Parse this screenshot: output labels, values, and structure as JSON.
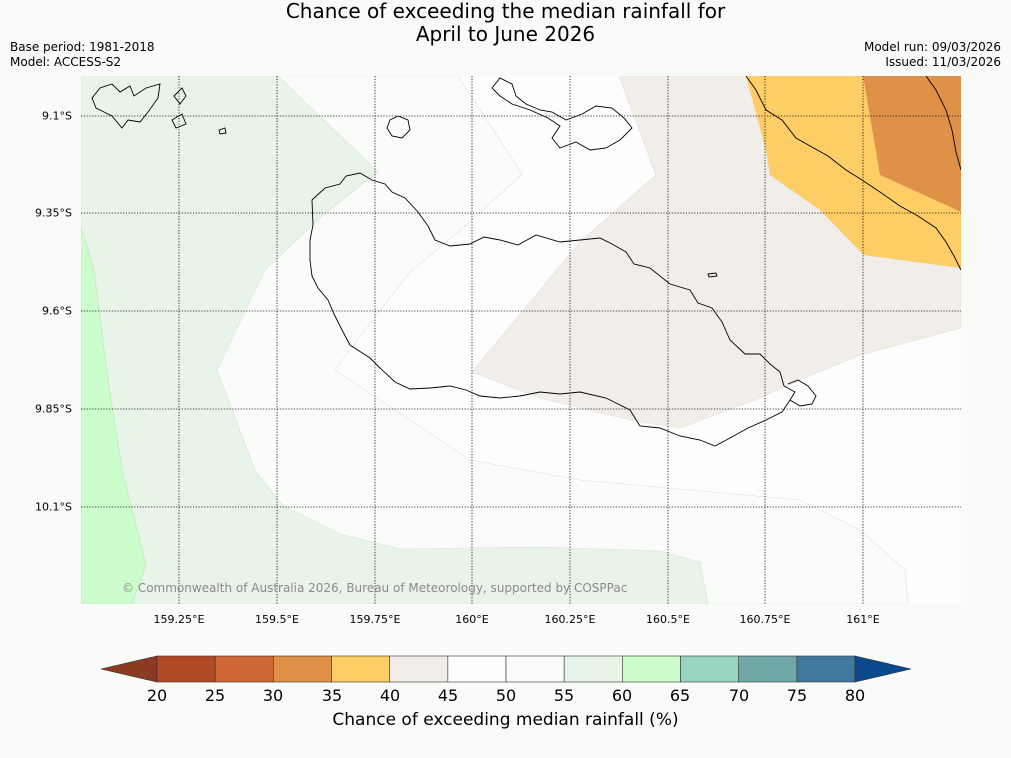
{
  "title": {
    "line1": "Chance of exceeding the median rainfall for",
    "line2": "April to June 2026"
  },
  "meta_left": {
    "base_period": "Base period: 1981-2018",
    "model": "Model: ACCESS-S2"
  },
  "meta_right": {
    "model_run": "Model run: 09/03/2026",
    "issued": "Issued: 11/03/2026"
  },
  "map": {
    "lat_labels": [
      "9.1°S",
      "9.35°S",
      "9.6°S",
      "9.85°S",
      "10.1°S"
    ],
    "lon_labels": [
      "159.25°E",
      "159.5°E",
      "159.75°E",
      "160°E",
      "160.25°E",
      "160.5°E",
      "160.75°E",
      "161°E"
    ],
    "copyright": "© Commonwealth of Australia 2026, Bureau of Meteorology, supported by COSPPac"
  },
  "colorbar": {
    "ticks": [
      "20",
      "25",
      "30",
      "35",
      "40",
      "45",
      "50",
      "55",
      "60",
      "65",
      "70",
      "75",
      "80"
    ],
    "colors": [
      "#8c3a22",
      "#b24a28",
      "#cf6634",
      "#e09148",
      "#ffcd66",
      "#f1ede8",
      "#fcfdfc",
      "#fafcfa",
      "#e8f4e8",
      "#ccfdcc",
      "#9ad3bf",
      "#70a8a8",
      "#41799e",
      "#0a4a8c"
    ],
    "label": "Chance of exceeding median rainfall (%)"
  }
}
